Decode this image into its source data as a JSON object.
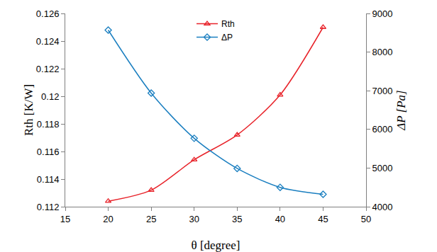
{
  "chart_data": {
    "type": "line",
    "x_label": "θ [degree]",
    "y_label": "Rth [K/W]",
    "y2_label": "ΔP [Pa]",
    "x": [
      20,
      25,
      30,
      35,
      40,
      45
    ],
    "series": [
      {
        "name": "Rth",
        "color": "#e8232a",
        "marker": "triangle",
        "line_style": "solid",
        "values": [
          0.1124,
          0.1132,
          0.1154,
          0.1172,
          0.1201,
          0.125
        ]
      },
      {
        "name": "ΔP",
        "color": "#1b7fc0",
        "marker": "diamond",
        "line_style": "solid",
        "axis": "y2",
        "values": [
          8570,
          6940,
          5770,
          4990,
          4500,
          4320
        ]
      }
    ],
    "xlim": [
      15,
      50
    ],
    "xticks": [
      15,
      20,
      25,
      30,
      35,
      40,
      45,
      50
    ],
    "ylim": [
      0.112,
      0.126
    ],
    "yticks": [
      0.112,
      0.114,
      0.116,
      0.118,
      0.12,
      0.122,
      0.124,
      0.126
    ],
    "y2lim": [
      4000,
      9000
    ],
    "y2ticks": [
      4000,
      5000,
      6000,
      7000,
      8000,
      9000
    ],
    "grid": false,
    "legend": "top"
  }
}
